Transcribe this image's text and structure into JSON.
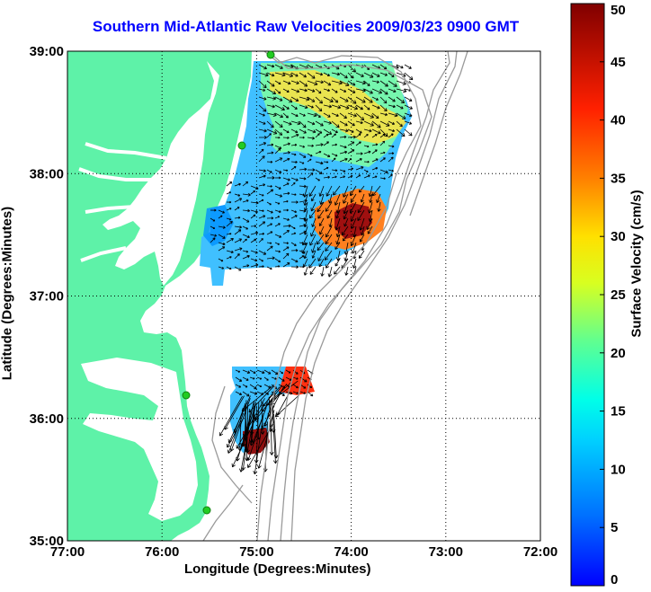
{
  "title": "Southern Mid-Atlantic Raw Velocities 2009/03/23 0900 GMT",
  "xlabel": "Longitude (Degrees:Minutes)",
  "ylabel": "Latitude (Degrees:Minutes)",
  "x_ticks": [
    "77:00",
    "76:00",
    "75:00",
    "74:00",
    "73:00",
    "72:00"
  ],
  "y_ticks": [
    "39:00",
    "38:00",
    "37:00",
    "36:00",
    "35:00"
  ],
  "colorbar": {
    "label": "Surface Velocity (cm/s)",
    "ticks": [
      "0",
      "5",
      "10",
      "15",
      "20",
      "25",
      "30",
      "35",
      "40",
      "45",
      "50"
    ],
    "range": [
      0,
      50
    ]
  },
  "colors": {
    "land": "#5ef2a8",
    "title": "#0000ff",
    "bathymetry": "#9a9a9a",
    "station": "#22cc22"
  },
  "chart_data": {
    "type": "heatmap",
    "xlabel": "Longitude (Degrees:Minutes)",
    "ylabel": "Latitude (Degrees:Minutes)",
    "xlim": [
      -77,
      -72
    ],
    "ylim": [
      35,
      39
    ],
    "grid": true,
    "vmin": 0,
    "vmax": 50
  }
}
